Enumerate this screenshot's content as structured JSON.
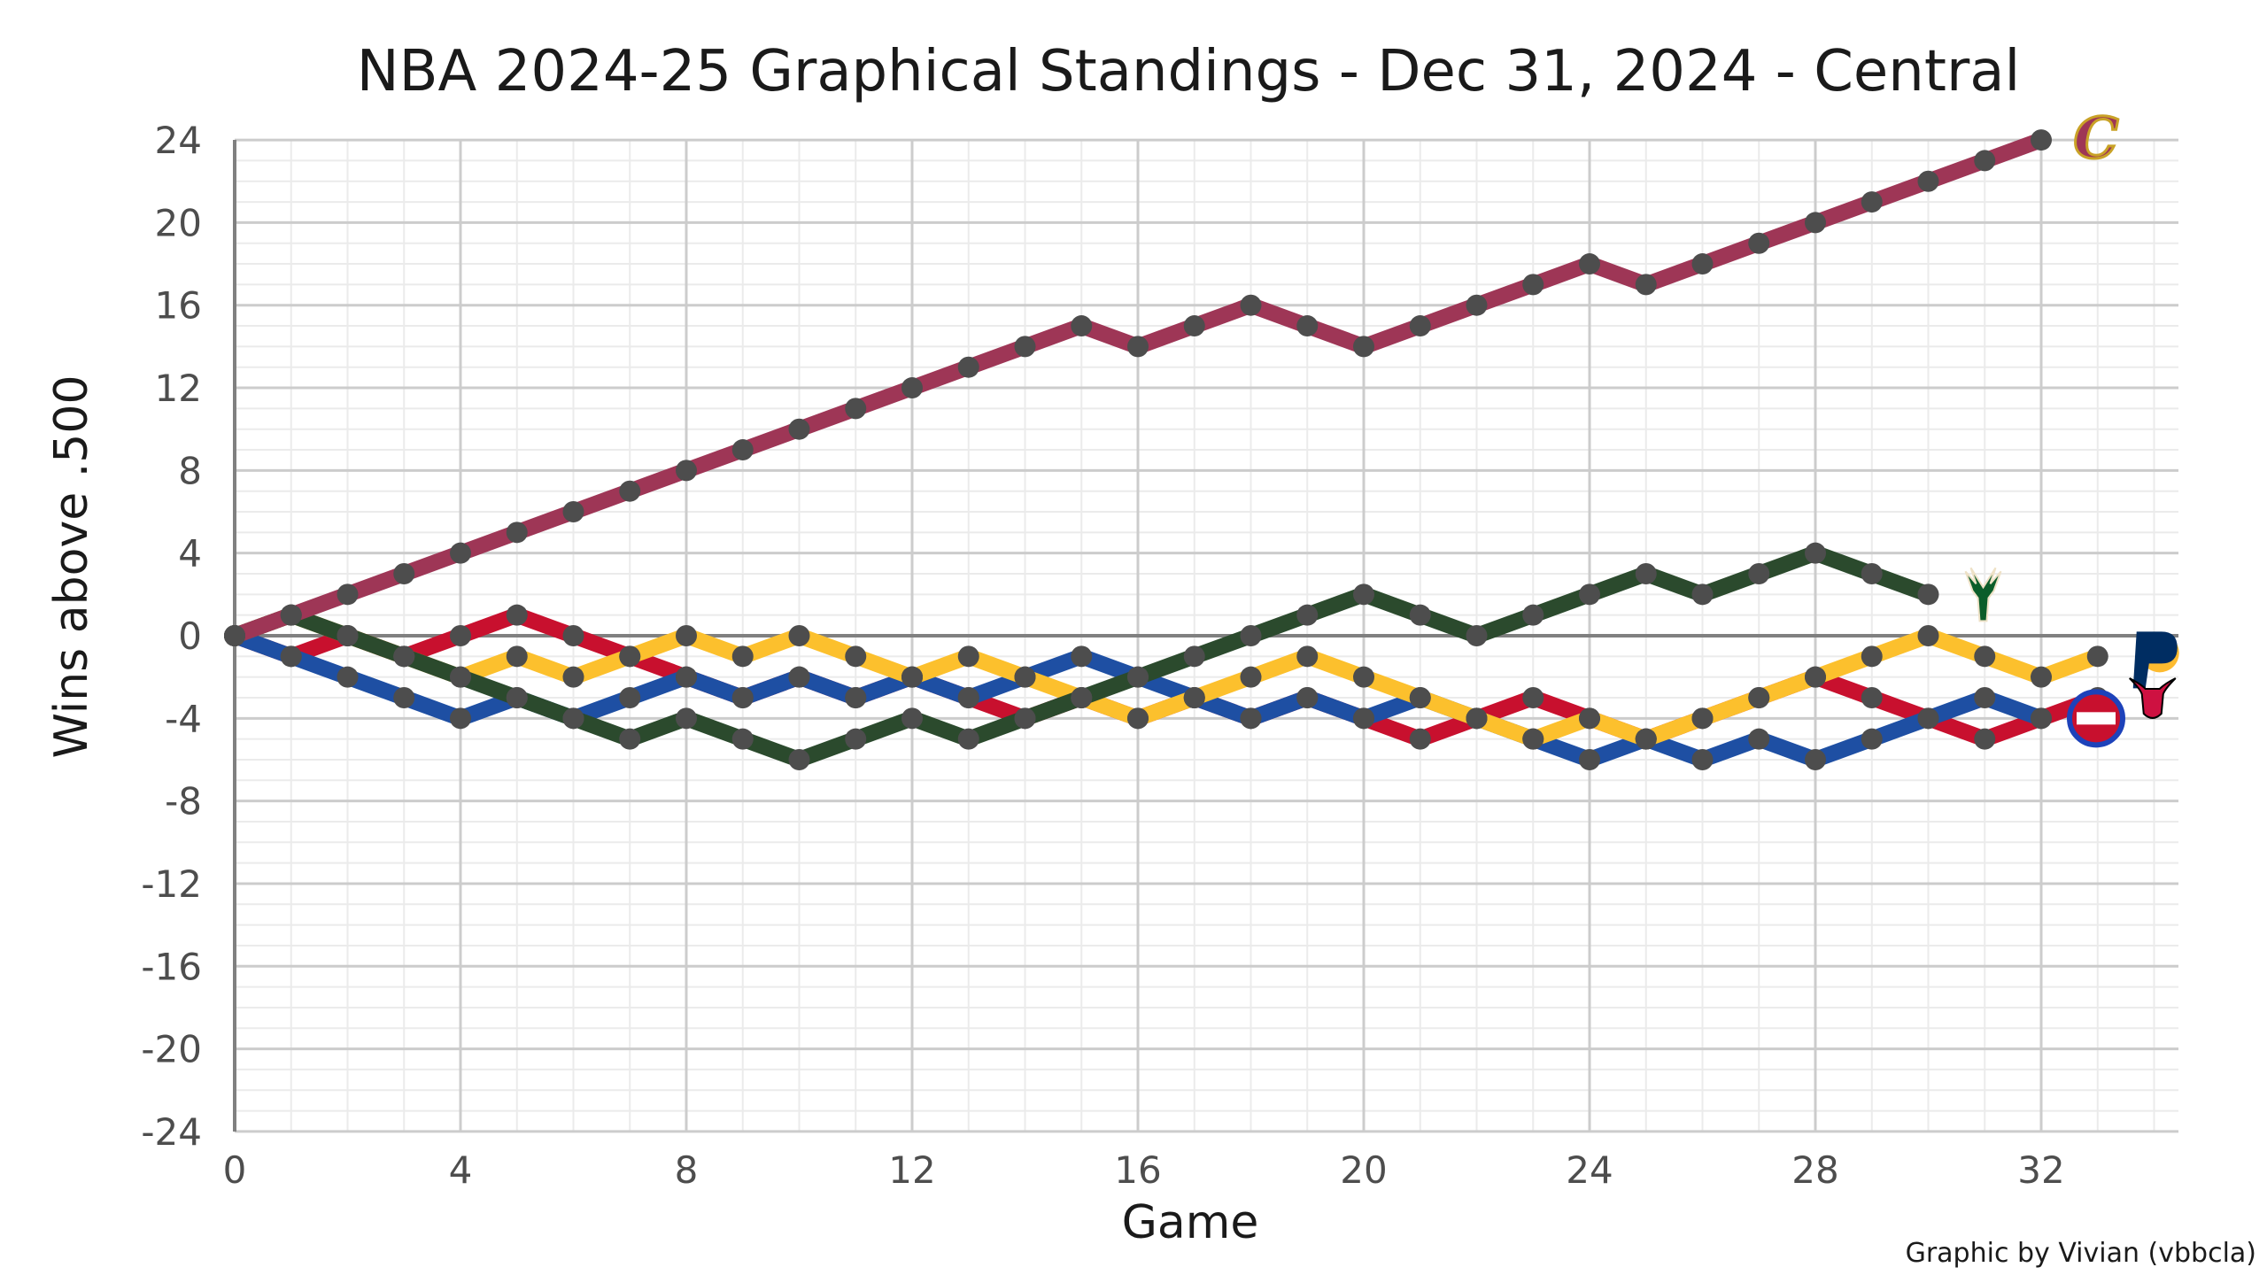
{
  "chart_data": {
    "type": "line",
    "title": "NBA 2024-25 Graphical Standings - Dec 31, 2024 - Central",
    "xlabel": "Game",
    "ylabel": "Wins above .500",
    "caption": "Graphic by Vivian (vbbcla)",
    "xlim": [
      0,
      34.5
    ],
    "ylim": [
      -24,
      24
    ],
    "x_ticks": [
      0,
      4,
      8,
      12,
      16,
      20,
      24,
      28,
      32
    ],
    "y_ticks": [
      -24,
      -20,
      -16,
      -12,
      -8,
      -4,
      0,
      4,
      8,
      12,
      16,
      20,
      24
    ],
    "grid": true,
    "legend": "team logos at line ends",
    "marker_color": "#4d4d4d",
    "series": [
      {
        "team": "CLE",
        "logo_letter": "C",
        "color": "#9e3656",
        "values": [
          0,
          1,
          2,
          3,
          4,
          5,
          6,
          7,
          8,
          9,
          10,
          11,
          12,
          13,
          14,
          15,
          14,
          15,
          16,
          15,
          14,
          15,
          16,
          17,
          18,
          17,
          18,
          19,
          20,
          21,
          22,
          23,
          24
        ]
      },
      {
        "team": "MIL",
        "color": "#2b4a2d",
        "values": [
          0,
          1,
          0,
          -1,
          -2,
          -3,
          -4,
          -5,
          -4,
          -5,
          -6,
          -5,
          -4,
          -5,
          -4,
          -3,
          -2,
          -1,
          0,
          1,
          2,
          1,
          0,
          1,
          2,
          3,
          2,
          3,
          4,
          3,
          2
        ]
      },
      {
        "team": "IND",
        "color": "#fcc02d",
        "values": [
          0,
          1,
          0,
          -1,
          -2,
          -1,
          -2,
          -1,
          0,
          -1,
          0,
          -1,
          -2,
          -1,
          -2,
          -3,
          -4,
          -3,
          -2,
          -1,
          -2,
          -3,
          -4,
          -5,
          -4,
          -5,
          -4,
          -3,
          -2,
          -1,
          0,
          -1,
          -2,
          -1
        ]
      },
      {
        "team": "DET",
        "color": "#1e4fa3",
        "values": [
          0,
          -1,
          -2,
          -3,
          -4,
          -3,
          -4,
          -3,
          -2,
          -3,
          -2,
          -3,
          -2,
          -3,
          -2,
          -1,
          -2,
          -3,
          -4,
          -3,
          -4,
          -3,
          -4,
          -5,
          -6,
          -5,
          -6,
          -5,
          -6,
          -5,
          -4,
          -3,
          -4
        ]
      },
      {
        "team": "CHI",
        "color": "#c8102e",
        "values": [
          0,
          -1,
          0,
          -1,
          0,
          1,
          0,
          -1,
          -2,
          -3,
          -2,
          -3,
          -2,
          -3,
          -4,
          -3,
          -4,
          -3,
          -4,
          -3,
          -4,
          -5,
          -4,
          -3,
          -4,
          -5,
          -4,
          -3,
          -2,
          -3,
          -4,
          -5,
          -4,
          -3
        ]
      }
    ]
  }
}
